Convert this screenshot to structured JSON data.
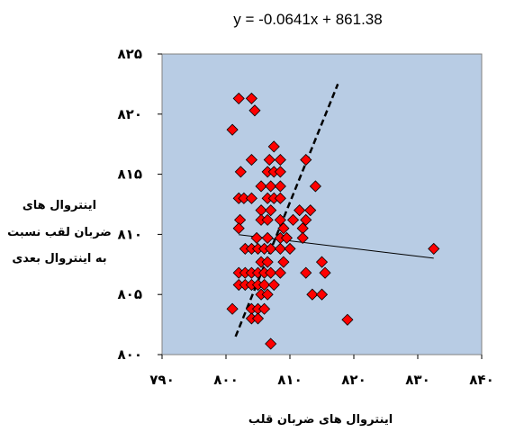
{
  "chart_data": {
    "type": "scatter",
    "title": "y = -0.0641x  + 861.38",
    "xlabel": "اینتروال های ضربان قلب",
    "ylabel": [
      "اینتروال های",
      "ضربان لقب نسبت",
      "به اینتروال بعدی"
    ],
    "xlim": [
      790,
      840
    ],
    "ylim": [
      800,
      825
    ],
    "x_ticks": [
      790,
      800,
      810,
      820,
      830,
      840
    ],
    "x_tick_labels": [
      "۷۹۰",
      "۸۰۰",
      "۸۱۰",
      "۸۲۰",
      "۸۳۰",
      "۸۴۰"
    ],
    "y_ticks": [
      800,
      805,
      810,
      815,
      820,
      825
    ],
    "y_tick_labels": [
      "۸۰۰",
      "۸۰۵",
      "۸۱۰",
      "۸۱۵",
      "۸۲۰",
      "۸۲۵"
    ],
    "grid": false,
    "plot_background": "#b8cce4",
    "marker_color": "#ff0000",
    "marker_edge": "#000000",
    "series": [
      {
        "marker": "diamond",
        "points": [
          [
            802,
            821.3
          ],
          [
            804,
            821.3
          ],
          [
            804.5,
            820.3
          ],
          [
            801,
            818.7
          ],
          [
            807.5,
            817.3
          ],
          [
            802.3,
            815.2
          ],
          [
            804,
            816.2
          ],
          [
            806.8,
            816.2
          ],
          [
            808.5,
            816.2
          ],
          [
            812.5,
            816.2
          ],
          [
            806.5,
            815.2
          ],
          [
            807.5,
            815.2
          ],
          [
            808.5,
            815.2
          ],
          [
            805.5,
            814
          ],
          [
            807,
            814
          ],
          [
            808.5,
            814
          ],
          [
            814,
            814
          ],
          [
            802,
            813
          ],
          [
            802.8,
            813
          ],
          [
            804,
            813
          ],
          [
            806.5,
            813
          ],
          [
            807.5,
            813
          ],
          [
            808.5,
            813
          ],
          [
            805.5,
            812
          ],
          [
            807,
            812
          ],
          [
            811.5,
            812
          ],
          [
            813.2,
            812
          ],
          [
            802.2,
            811.2
          ],
          [
            805.5,
            811.2
          ],
          [
            806.5,
            811.2
          ],
          [
            808.5,
            811.2
          ],
          [
            810.5,
            811.2
          ],
          [
            812.5,
            811.2
          ],
          [
            802,
            810.5
          ],
          [
            809,
            810.5
          ],
          [
            812,
            810.5
          ],
          [
            804.8,
            809.7
          ],
          [
            806.5,
            809.7
          ],
          [
            808.5,
            809.7
          ],
          [
            809.5,
            809.7
          ],
          [
            812,
            809.7
          ],
          [
            803,
            808.8
          ],
          [
            804,
            808.8
          ],
          [
            805,
            808.8
          ],
          [
            806,
            808.8
          ],
          [
            807,
            808.8
          ],
          [
            808.5,
            808.8
          ],
          [
            810,
            808.8
          ],
          [
            832.5,
            808.8
          ],
          [
            805.5,
            807.7
          ],
          [
            806.5,
            807.7
          ],
          [
            809,
            807.7
          ],
          [
            815,
            807.7
          ],
          [
            802,
            806.8
          ],
          [
            803,
            806.8
          ],
          [
            804,
            806.8
          ],
          [
            805,
            806.8
          ],
          [
            806,
            806.8
          ],
          [
            807,
            806.8
          ],
          [
            808.5,
            806.8
          ],
          [
            812.5,
            806.8
          ],
          [
            815.5,
            806.8
          ],
          [
            802,
            805.8
          ],
          [
            803,
            805.8
          ],
          [
            804,
            805.8
          ],
          [
            805,
            805.8
          ],
          [
            806,
            805.8
          ],
          [
            807.5,
            805.8
          ],
          [
            805.5,
            805
          ],
          [
            806.5,
            805
          ],
          [
            813.5,
            805
          ],
          [
            815,
            805
          ],
          [
            801,
            803.8
          ],
          [
            804,
            803.8
          ],
          [
            805,
            803.8
          ],
          [
            806,
            803.8
          ],
          [
            804,
            803
          ],
          [
            805,
            803
          ],
          [
            819,
            802.9
          ],
          [
            807,
            800.9
          ]
        ]
      }
    ],
    "trendlines": [
      {
        "style": "solid",
        "slope": -0.0641,
        "intercept": 861.38,
        "x_start": 802,
        "x_end": 832.5
      },
      {
        "style": "dashed",
        "points": [
          [
            801.5,
            801.5
          ],
          [
            817.5,
            822.5
          ]
        ]
      }
    ]
  }
}
